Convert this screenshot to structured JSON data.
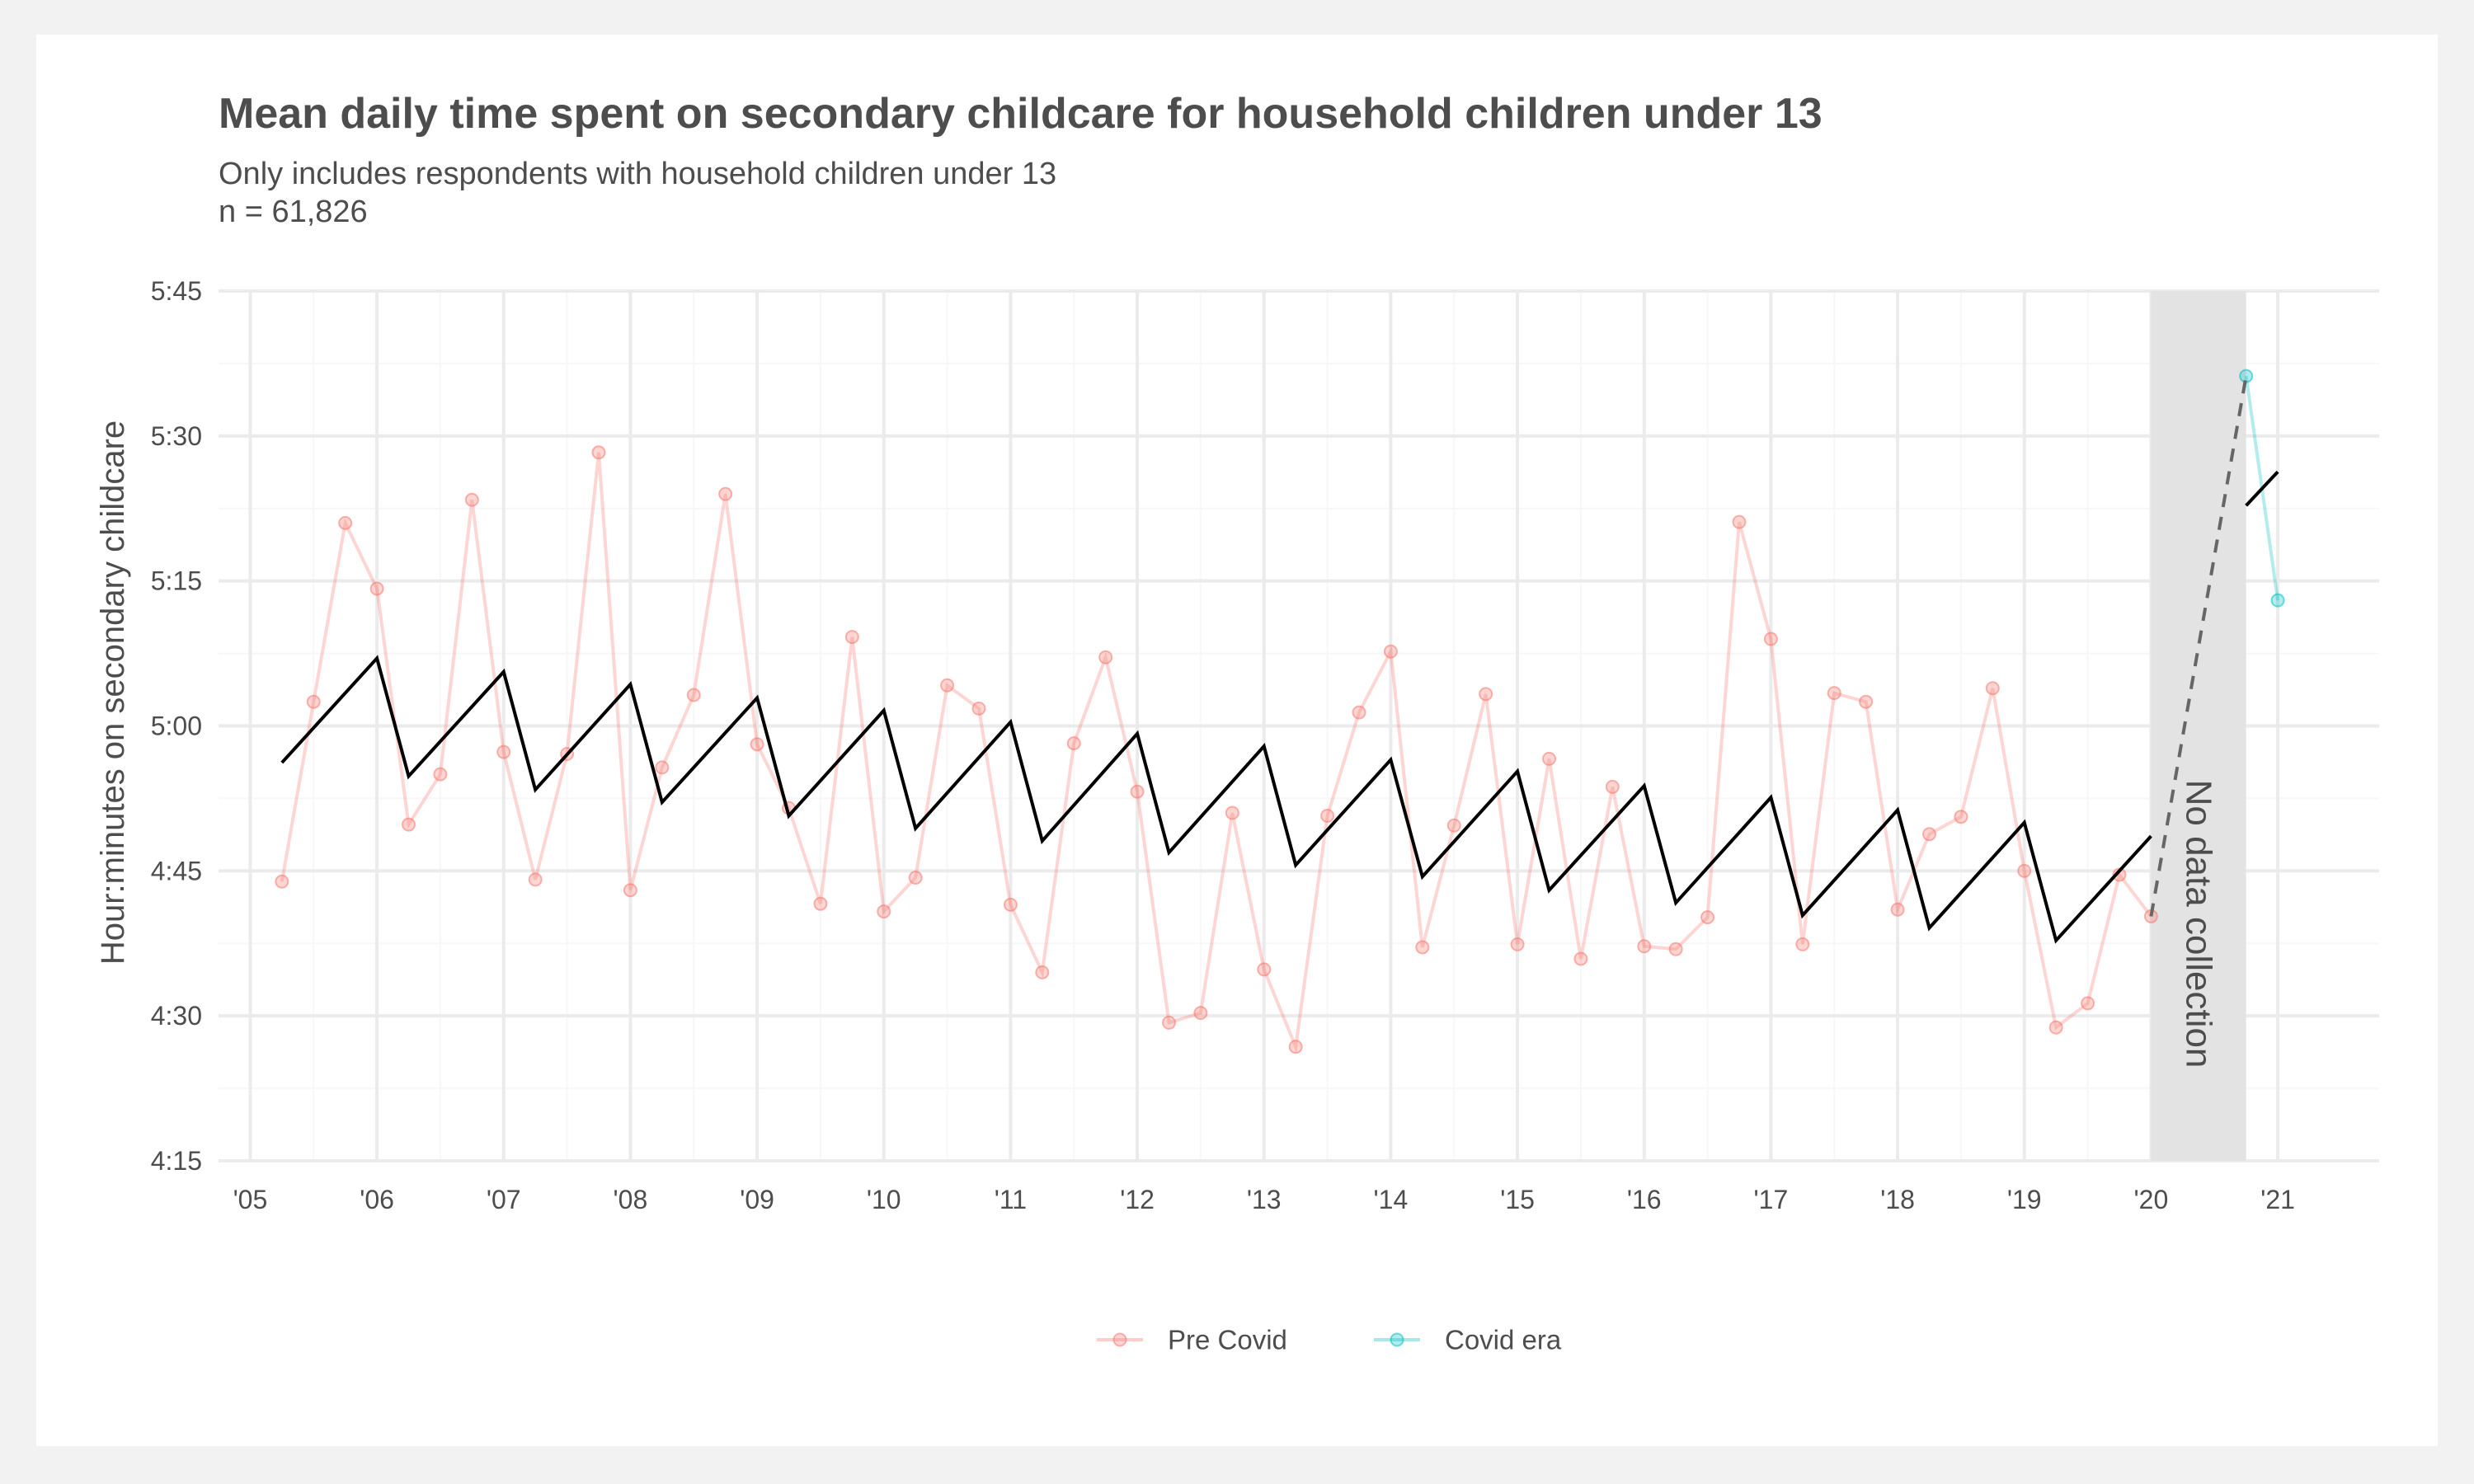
{
  "chart_data": {
    "type": "line",
    "title": "Mean daily time spent on secondary childcare for household children under 13",
    "subtitle_lines": [
      "Only includes respondents with household children under 13",
      "n = 61,826"
    ],
    "xlabel": "",
    "ylabel": "Hour:minutes on secondary childcare",
    "xlim": [
      2004.75,
      2021.8
    ],
    "ylim_minutes": [
      255,
      345
    ],
    "x_ticks": [
      2005,
      2006,
      2007,
      2008,
      2009,
      2010,
      2011,
      2012,
      2013,
      2014,
      2015,
      2016,
      2017,
      2018,
      2019,
      2020,
      2021
    ],
    "x_tick_labels": [
      "'05",
      "'06",
      "'07",
      "'08",
      "'09",
      "'10",
      "'11",
      "'12",
      "'13",
      "'14",
      "'15",
      "'16",
      "'17",
      "'18",
      "'19",
      "'20",
      "'21"
    ],
    "y_ticks": [
      255,
      270,
      285,
      300,
      315,
      330,
      345
    ],
    "y_tick_labels": [
      "4:15",
      "4:30",
      "4:45",
      "5:00",
      "5:15",
      "5:30",
      "5:45"
    ],
    "grid": true,
    "legend_position": "bottom",
    "series": [
      {
        "name": "Pre Covid",
        "color": "#f8766d",
        "x": [
          2005.25,
          2005.5,
          2005.75,
          2006.0,
          2006.25,
          2006.5,
          2006.75,
          2007.0,
          2007.25,
          2007.5,
          2007.75,
          2008.0,
          2008.25,
          2008.5,
          2008.75,
          2009.0,
          2009.25,
          2009.5,
          2009.75,
          2010.0,
          2010.25,
          2010.5,
          2010.75,
          2011.0,
          2011.25,
          2011.5,
          2011.75,
          2012.0,
          2012.25,
          2012.5,
          2012.75,
          2013.0,
          2013.25,
          2013.5,
          2013.75,
          2014.0,
          2014.25,
          2014.5,
          2014.75,
          2015.0,
          2015.25,
          2015.5,
          2015.75,
          2016.0,
          2016.25,
          2016.5,
          2016.75,
          2017.0,
          2017.25,
          2017.5,
          2017.75,
          2018.0,
          2018.25,
          2018.5,
          2018.75,
          2019.0,
          2019.25,
          2019.5,
          2019.75,
          2020.0
        ],
        "y": [
          283.9,
          302.5,
          321.0,
          314.2,
          289.8,
          295.0,
          323.4,
          297.3,
          284.1,
          297.1,
          328.3,
          283.0,
          295.7,
          303.2,
          324.0,
          298.1,
          291.5,
          281.6,
          309.2,
          280.8,
          284.3,
          304.2,
          301.8,
          281.5,
          274.5,
          298.2,
          307.1,
          293.2,
          269.3,
          270.3,
          291.0,
          274.8,
          266.8,
          290.7,
          301.4,
          307.7,
          277.1,
          289.7,
          303.3,
          277.4,
          296.6,
          275.9,
          293.7,
          277.2,
          276.9,
          280.2,
          321.1,
          309.0,
          277.4,
          303.4,
          302.5,
          281.0,
          288.8,
          290.6,
          303.9,
          285.0,
          268.8,
          271.3,
          284.6,
          280.3
        ]
      },
      {
        "name": "Covid era",
        "color": "#00bfc4",
        "x": [
          2020.75,
          2021.0
        ],
        "y": [
          336.2,
          313.0
        ]
      }
    ],
    "fitted_trend": {
      "color": "#000000",
      "x_pre": [
        2005.25,
        2006.0,
        2006.25,
        2007.0,
        2007.25,
        2008.0,
        2008.25,
        2009.0,
        2009.25,
        2010.0,
        2010.25,
        2011.0,
        2011.25,
        2012.0,
        2012.25,
        2013.0,
        2013.25,
        2014.0,
        2014.25,
        2015.0,
        2015.25,
        2016.0,
        2016.25,
        2017.0,
        2017.25,
        2018.0,
        2018.25,
        2019.0,
        2019.25,
        2020.0
      ],
      "y_pre": [
        296.2,
        307.0,
        294.8,
        305.6,
        293.4,
        304.3,
        292.1,
        302.9,
        290.7,
        301.6,
        289.4,
        300.4,
        288.1,
        299.2,
        286.9,
        297.9,
        285.6,
        296.5,
        284.4,
        295.3,
        283.0,
        293.8,
        281.7,
        292.6,
        280.4,
        291.3,
        279.1,
        290.0,
        277.8,
        288.6
      ],
      "x_covid": [
        2020.75,
        2021.0
      ],
      "y_covid": [
        322.8,
        326.3
      ]
    },
    "bridge_line": {
      "style": "dashed",
      "color": "#666666",
      "x": [
        2020.0,
        2020.75
      ],
      "y": [
        280.3,
        336.2
      ]
    },
    "annotation": {
      "text": "No data collection",
      "x_range": [
        2020.0,
        2020.75
      ],
      "fill": "#e3e3e3"
    }
  }
}
